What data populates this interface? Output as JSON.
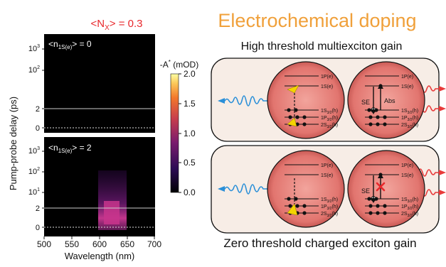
{
  "figure": {
    "nx_label": "<N",
    "nx_sub": "X",
    "nx_value": "> = 0.3",
    "title": "Electrochemical doping",
    "subtitle_top": "High threshold multiexciton gain",
    "subtitle_bottom": "Zero threshold charged exciton gain"
  },
  "panels": {
    "top_label_prefix": "<n",
    "top_label_sub": "1S(e)",
    "top_label_value": "> = 0",
    "bottom_label_prefix": "<n",
    "bottom_label_sub": "1S(e)",
    "bottom_label_value": "> = 2"
  },
  "axes": {
    "ylabel": "Pump-probe delay (ps)",
    "xlabel": "Wavelength (nm)",
    "x_ticks": [
      "500",
      "550",
      "600",
      "650",
      "700"
    ],
    "y_ticks_top": [
      "10",
      "10",
      "2",
      "0"
    ],
    "y_ticks_top_exp": [
      "3",
      "2",
      "",
      ""
    ],
    "y_ticks_bottom": [
      "10",
      "10",
      "10",
      "2",
      "0"
    ],
    "y_ticks_bottom_exp": [
      "3",
      "2",
      "1",
      "",
      ""
    ]
  },
  "colorbar": {
    "label": "-A",
    "label_sup": "*",
    "label_unit": " (mOD)",
    "ticks": [
      "2.0",
      "1.5",
      "1.0",
      "0.5",
      "0.0"
    ]
  },
  "levels": {
    "one_p_e": "1P(e)",
    "one_s_e": "1S(e)",
    "one_s_h": "1S",
    "one_s_h_sub": "3/2",
    "one_s_h_tail": "(h)",
    "one_p_h": "1P",
    "one_p_h_sub": "3/2",
    "one_p_h_tail": "(h)",
    "two_s_h": "2S",
    "two_s_h_sub": "3/2",
    "two_s_h_tail": "(h)",
    "se_label": "SE",
    "abs_label": "Abs"
  },
  "colors": {
    "accent_orange": "#f0a03a",
    "red_label": "#e8282c",
    "dot_fill": "#e4807a",
    "box_fill": "#f7ede6",
    "pump_blue": "#2a8fd8",
    "emit_red": "#e83a3a",
    "arrow_yellow": "#f4d400"
  }
}
